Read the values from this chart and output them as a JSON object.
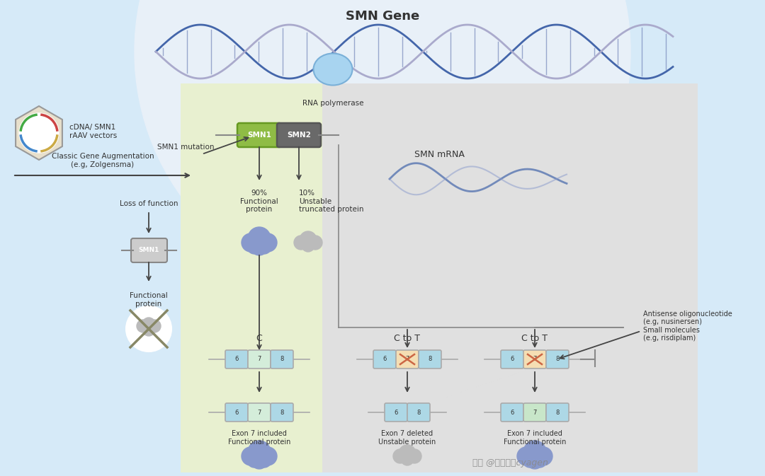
{
  "bg_color": "#d6eaf8",
  "title": "SMN Gene",
  "left_panel_bg": "#d6eaf8",
  "green_panel_bg": "#e8f0d0",
  "gray_panel_bg": "#e0e0e0",
  "texts": {
    "smn_gene": "SMN Gene",
    "rna_pol": "RNA polymerase",
    "smn1_mutation": "SMN1 mutation",
    "loss_of_function": "Loss of function",
    "functional_protein": "Functional\nprotein",
    "cdna_label": "cDNA/ SMN1\nrAAV vectors",
    "classic_gene": "Classic Gene Augmentation\n(e.g, Zolgensma)",
    "smn_mrna": "SMN mRNA",
    "pct90": "90%\nFunctional\nprotein",
    "pct10": "10%\nUnstable\ntruncated protein",
    "c_label": "C",
    "c_to_t1": "C to T",
    "c_to_t2": "C to T",
    "exon7_incl1": "Exon 7 included\nFunctional protein",
    "exon7_del": "Exon 7 deleted\nUnstable protein",
    "exon7_incl2": "Exon 7 included\nFunctional protein",
    "antisense": "Antisense oligonucleotide\n(e.g, nusinersen)\nSmall molecules\n(e.g, risdiplam)",
    "watermark": "知乎 @赛业生物cyagen"
  },
  "colors": {
    "smn1_box": "#8fbc45",
    "smn2_box": "#696969",
    "exon6_color": "#add8e6",
    "exon7_color": "#d4edda",
    "exon7_mutant": "#f5deb3",
    "exon8_color": "#add8e6",
    "exon7_rescued": "#c8e6c9",
    "cross_color": "#c0a080",
    "arrow_color": "#404040",
    "border_color": "#888888"
  }
}
